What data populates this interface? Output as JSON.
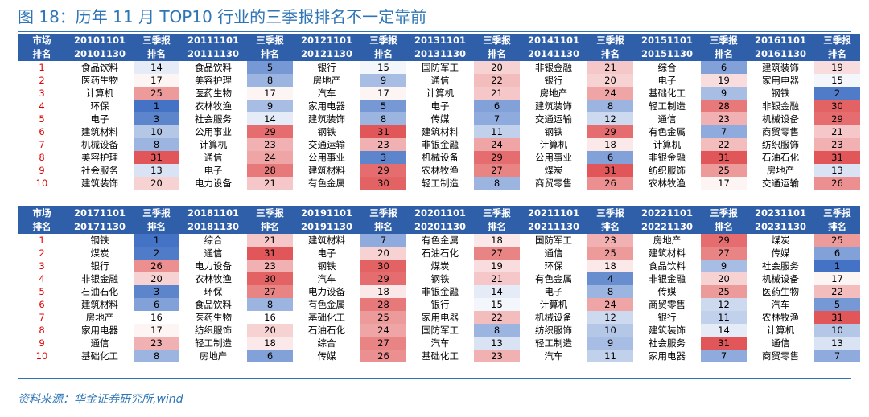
{
  "title": "图 18：历年 11 月 TOP10 行业的三季报排名不一定靠前",
  "source": "资料来源：华金证券研究所,wind",
  "header_labels": {
    "market_1": "市场",
    "market_2": "排名",
    "q3_1": "三季报",
    "q3_2": "排名"
  },
  "colors": {
    "low": "#4472c4",
    "mid": "#ffffff",
    "high": "#e15759"
  },
  "blocks": [
    {
      "periods": [
        {
          "start": "20101101",
          "end": "20101130",
          "industries": [
            "食品饮料",
            "医药生物",
            "计算机",
            "环保",
            "电子",
            "建筑材料",
            "机械设备",
            "美容护理",
            "社会服务",
            "建筑装饰"
          ],
          "q3": [
            14,
            17,
            25,
            1,
            3,
            10,
            8,
            31,
            13,
            20
          ]
        },
        {
          "start": "20111101",
          "end": "20111130",
          "industries": [
            "食品饮料",
            "美容护理",
            "医药生物",
            "农林牧渔",
            "社会服务",
            "公用事业",
            "计算机",
            "通信",
            "电子",
            "电力设备"
          ],
          "q3": [
            5,
            8,
            17,
            9,
            14,
            29,
            23,
            24,
            28,
            21
          ]
        },
        {
          "start": "20121101",
          "end": "20121130",
          "industries": [
            "银行",
            "房地产",
            "汽车",
            "家用电器",
            "建筑装饰",
            "钢铁",
            "交通运输",
            "公用事业",
            "建筑材料",
            "有色金属"
          ],
          "q3": [
            15,
            9,
            17,
            5,
            8,
            31,
            23,
            3,
            29,
            30
          ]
        },
        {
          "start": "20131101",
          "end": "20131130",
          "industries": [
            "国防军工",
            "通信",
            "计算机",
            "电子",
            "传媒",
            "建筑材料",
            "非银金融",
            "机械设备",
            "农林牧渔",
            "轻工制造"
          ],
          "q3": [
            20,
            22,
            21,
            6,
            7,
            11,
            24,
            29,
            27,
            8
          ]
        },
        {
          "start": "20141101",
          "end": "20141130",
          "industries": [
            "非银金融",
            "银行",
            "房地产",
            "建筑装饰",
            "交通运输",
            "钢铁",
            "计算机",
            "公用事业",
            "煤炭",
            "商贸零售"
          ],
          "q3": [
            21,
            20,
            24,
            8,
            12,
            29,
            18,
            6,
            31,
            26
          ]
        },
        {
          "start": "20151101",
          "end": "20151130",
          "industries": [
            "综合",
            "电子",
            "基础化工",
            "轻工制造",
            "通信",
            "有色金属",
            "计算机",
            "非银金融",
            "纺织服饰",
            "农林牧渔"
          ],
          "q3": [
            6,
            19,
            9,
            28,
            23,
            7,
            22,
            31,
            25,
            17
          ]
        },
        {
          "start": "20161101",
          "end": "20161130",
          "industries": [
            "建筑装饰",
            "家用电器",
            "钢铁",
            "非银金融",
            "机械设备",
            "商贸零售",
            "纺织服饰",
            "石油石化",
            "房地产",
            "交通运输"
          ],
          "q3": [
            19,
            15,
            2,
            30,
            29,
            21,
            23,
            31,
            13,
            26
          ]
        }
      ]
    },
    {
      "periods": [
        {
          "start": "20171101",
          "end": "20171130",
          "industries": [
            "钢铁",
            "煤炭",
            "银行",
            "非银金融",
            "石油石化",
            "建筑材料",
            "房地产",
            "家用电器",
            "通信",
            "基础化工"
          ],
          "q3": [
            1,
            2,
            26,
            20,
            3,
            6,
            16,
            17,
            23,
            8
          ]
        },
        {
          "start": "20181101",
          "end": "20181130",
          "industries": [
            "综合",
            "通信",
            "电力设备",
            "农林牧渔",
            "环保",
            "食品饮料",
            "医药生物",
            "纺织服饰",
            "轻工制造",
            "房地产"
          ],
          "q3": [
            21,
            31,
            23,
            30,
            27,
            8,
            16,
            20,
            18,
            6
          ]
        },
        {
          "start": "20191101",
          "end": "20191130",
          "industries": [
            "建筑材料",
            "电子",
            "钢铁",
            "汽车",
            "电力设备",
            "有色金属",
            "基础化工",
            "石油石化",
            "综合",
            "传媒"
          ],
          "q3": [
            7,
            20,
            30,
            29,
            18,
            28,
            25,
            24,
            27,
            26
          ]
        },
        {
          "start": "20201101",
          "end": "20201130",
          "industries": [
            "有色金属",
            "石油石化",
            "煤炭",
            "钢铁",
            "非银金融",
            "银行",
            "家用电器",
            "国防军工",
            "汽车",
            "基础化工"
          ],
          "q3": [
            18,
            27,
            19,
            21,
            14,
            15,
            22,
            8,
            13,
            23
          ]
        },
        {
          "start": "20211101",
          "end": "20211130",
          "industries": [
            "国防军工",
            "通信",
            "环保",
            "有色金属",
            "电子",
            "计算机",
            "机械设备",
            "纺织服饰",
            "轻工制造",
            "汽车"
          ],
          "q3": [
            23,
            25,
            18,
            4,
            8,
            24,
            12,
            10,
            9,
            11
          ]
        },
        {
          "start": "20221101",
          "end": "20221130",
          "industries": [
            "房地产",
            "建筑材料",
            "食品饮料",
            "非银金融",
            "传媒",
            "商贸零售",
            "银行",
            "建筑装饰",
            "社会服务",
            "家用电器"
          ],
          "q3": [
            29,
            27,
            9,
            20,
            25,
            12,
            11,
            14,
            31,
            7
          ]
        },
        {
          "start": "20231101",
          "end": "20231130",
          "industries": [
            "煤炭",
            "传媒",
            "社会服务",
            "机械设备",
            "医药生物",
            "汽车",
            "农林牧渔",
            "计算机",
            "通信",
            "商贸零售"
          ],
          "q3": [
            25,
            6,
            1,
            17,
            22,
            5,
            31,
            10,
            13,
            7
          ]
        }
      ]
    }
  ]
}
